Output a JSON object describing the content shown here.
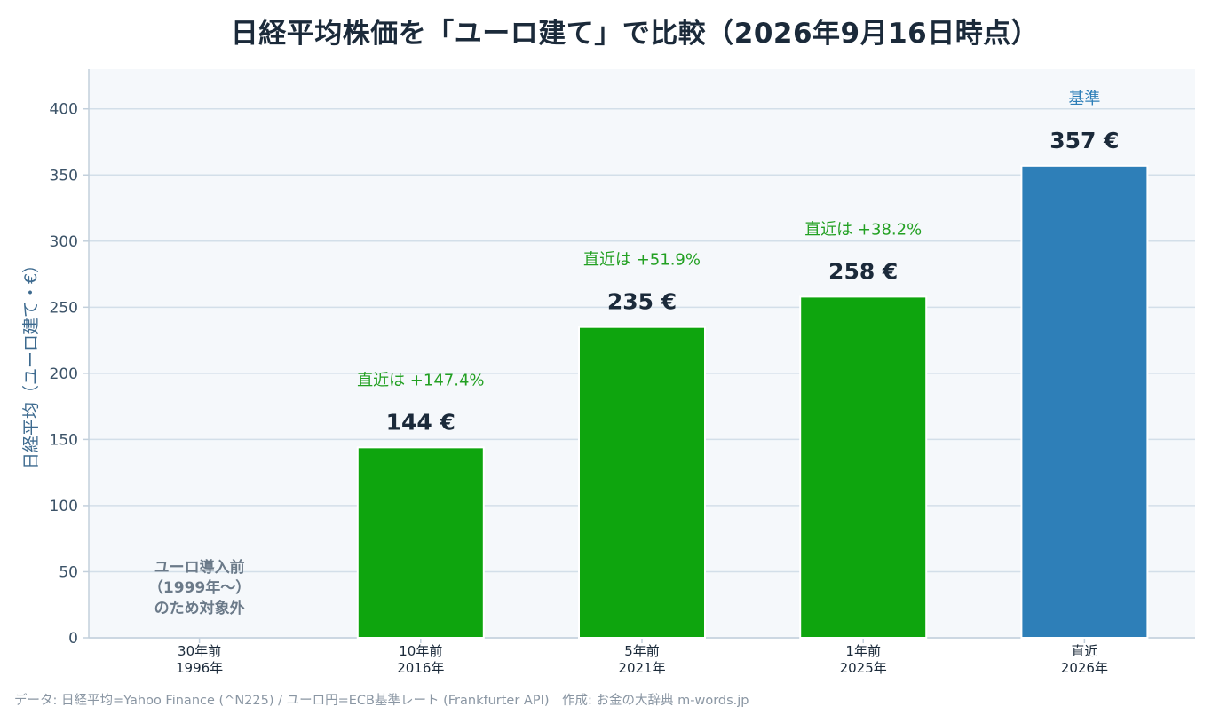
{
  "chart_data": {
    "type": "bar",
    "title": "日経平均株価を「ユーロ建て」で比較（2026年9月16日時点）",
    "ylabel": "日経平均（ユーロ建て・€）",
    "ylim": [
      0,
      430
    ],
    "yticks": [
      0,
      50,
      100,
      150,
      200,
      250,
      300,
      350,
      400
    ],
    "grid": true,
    "categories": [
      {
        "line1": "30年前",
        "line2": "1996年"
      },
      {
        "line1": "10年前",
        "line2": "2016年"
      },
      {
        "line1": "5年前",
        "line2": "2021年"
      },
      {
        "line1": "1年前",
        "line2": "2025年"
      },
      {
        "line1": "直近",
        "line2": "2026年"
      }
    ],
    "values": [
      null,
      144,
      235,
      258,
      357
    ],
    "value_labels": [
      "",
      "144 €",
      "235 €",
      "258 €",
      "357 €"
    ],
    "change_labels": [
      "",
      "直近は +147.4%",
      "直近は +51.9%",
      "直近は +38.2%",
      "基準"
    ],
    "bar_colors": [
      "#0ea50e",
      "#0ea50e",
      "#0ea50e",
      "#0ea50e",
      "#2e7fb8"
    ],
    "change_colors": [
      "#22a022",
      "#22a022",
      "#22a022",
      "#22a022",
      "#2e7fb8"
    ],
    "na_note": [
      "ユーロ導入前",
      "（1999年〜）",
      "のため対象外"
    ]
  },
  "footer": "データ: 日経平均=Yahoo Finance (^N225) / ユーロ円=ECB基準レート (Frankfurter API)　作成: お金の大辞典 m-words.jp",
  "colors": {
    "plot_bg": "#f5f8fb",
    "grid": "#d3dfe9",
    "axis": "#c3d0dc",
    "tick_text": "#3c5368",
    "value_text": "#1b2a3a",
    "na_text": "#6b7a89"
  }
}
